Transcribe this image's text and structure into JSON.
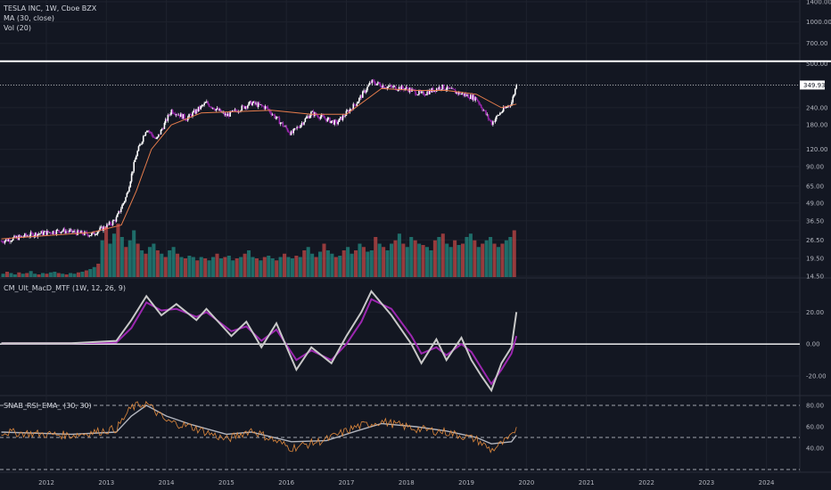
{
  "header": {
    "symbol_line": "TESLA INC, 1W, Cboe BZX",
    "ma_label": "MA (30, close)",
    "vol_label": "Vol (20)"
  },
  "panes": {
    "macd_label": "CM_Ult_MacD_MTF (1W, 12, 26, 9)",
    "rsi_label": "SNAB_RSI_EMA_ (30, 30)"
  },
  "last_price": "349.93",
  "colors": {
    "background": "#131722",
    "up": "#26a69a",
    "down": "#ef5350",
    "candle_up": "#ffffff",
    "candle_down": "#9c27b0",
    "ma": "#e57c4c",
    "rsi": "#e0893c",
    "rsi_ema": "#b2b5be",
    "grid": "#1e222d"
  },
  "chart_data": [
    {
      "type": "candlestick",
      "pane": "price",
      "scale": "log",
      "ylim": [
        14.5,
        1400
      ],
      "y_ticks": [
        "1400.00",
        "1000.00",
        "700.00",
        "500.00",
        "349.93",
        "240.00",
        "180.00",
        "120.00",
        "90.00",
        "65.00",
        "49.00",
        "36.50",
        "26.50",
        "19.50",
        "14.50"
      ],
      "horizontal_line": 520,
      "close_series": {
        "x": [
          "2011-04",
          "2011-10",
          "2012-04",
          "2012-10",
          "2013-02",
          "2013-03",
          "2013-05",
          "2013-07",
          "2013-09",
          "2013-11",
          "2014-02",
          "2014-05",
          "2014-09",
          "2015-01",
          "2015-06",
          "2015-09",
          "2016-02",
          "2016-06",
          "2016-11",
          "2017-03",
          "2017-06",
          "2017-09",
          "2018-01",
          "2018-04",
          "2018-08",
          "2018-11",
          "2019-03",
          "2019-06",
          "2019-08",
          "2019-10",
          "2019-11"
        ],
        "y": [
          26,
          29,
          31,
          29,
          35,
          38,
          55,
          110,
          170,
          140,
          230,
          200,
          260,
          210,
          260,
          240,
          155,
          220,
          185,
          260,
          370,
          340,
          330,
          300,
          340,
          310,
          280,
          185,
          225,
          260,
          349.93
        ]
      },
      "ma_series": {
        "name": "MA (30, close)",
        "x": [
          "2011-04",
          "2012-04",
          "2012-10",
          "2013-04",
          "2013-07",
          "2013-10",
          "2014-02",
          "2014-08",
          "2015-03",
          "2015-10",
          "2016-06",
          "2017-01",
          "2017-08",
          "2018-03",
          "2018-09",
          "2019-03",
          "2019-08",
          "2019-11"
        ],
        "y": [
          27,
          29,
          30,
          34,
          60,
          120,
          180,
          220,
          225,
          230,
          215,
          215,
          330,
          320,
          320,
          300,
          240,
          255
        ]
      }
    },
    {
      "type": "bar",
      "pane": "volume",
      "name": "Vol (20)",
      "x_range": [
        "2011-04",
        "2019-11"
      ],
      "bar_count": 130,
      "relative_values": [
        0.05,
        0.08,
        0.06,
        0.04,
        0.07,
        0.05,
        0.06,
        0.09,
        0.05,
        0.04,
        0.06,
        0.05,
        0.07,
        0.08,
        0.06,
        0.05,
        0.04,
        0.06,
        0.05,
        0.07,
        0.08,
        0.1,
        0.12,
        0.15,
        0.2,
        0.55,
        0.75,
        0.5,
        0.65,
        0.8,
        0.6,
        0.45,
        0.55,
        0.7,
        0.5,
        0.4,
        0.35,
        0.45,
        0.5,
        0.4,
        0.35,
        0.3,
        0.4,
        0.45,
        0.35,
        0.3,
        0.28,
        0.32,
        0.3,
        0.25,
        0.3,
        0.28,
        0.25,
        0.3,
        0.35,
        0.28,
        0.3,
        0.32,
        0.25,
        0.28,
        0.3,
        0.35,
        0.4,
        0.3,
        0.28,
        0.25,
        0.3,
        0.32,
        0.28,
        0.25,
        0.3,
        0.35,
        0.3,
        0.28,
        0.32,
        0.3,
        0.4,
        0.45,
        0.35,
        0.3,
        0.38,
        0.5,
        0.4,
        0.35,
        0.3,
        0.32,
        0.4,
        0.45,
        0.35,
        0.4,
        0.5,
        0.45,
        0.38,
        0.4,
        0.6,
        0.5,
        0.45,
        0.4,
        0.5,
        0.55,
        0.65,
        0.5,
        0.45,
        0.6,
        0.55,
        0.5,
        0.48,
        0.45,
        0.4,
        0.55,
        0.6,
        0.65,
        0.5,
        0.45,
        0.55,
        0.48,
        0.5,
        0.6,
        0.65,
        0.55,
        0.45,
        0.5,
        0.55,
        0.6,
        0.5,
        0.45,
        0.5,
        0.55,
        0.6,
        0.7
      ]
    },
    {
      "type": "line",
      "pane": "macd",
      "name": "CM_Ult_MacD_MTF (1W, 12, 26, 9)",
      "ylim": [
        -30,
        38
      ],
      "y_ticks": [
        "20.00",
        "0.00",
        "-20.00"
      ],
      "zero_line": 0,
      "x": [
        "2011-04",
        "2012-06",
        "2013-03",
        "2013-06",
        "2013-09",
        "2013-12",
        "2014-03",
        "2014-07",
        "2014-09",
        "2015-02",
        "2015-05",
        "2015-08",
        "2015-11",
        "2016-03",
        "2016-06",
        "2016-10",
        "2017-01",
        "2017-04",
        "2017-06",
        "2017-10",
        "2018-02",
        "2018-04",
        "2018-07",
        "2018-09",
        "2018-12",
        "2019-02",
        "2019-04",
        "2019-06",
        "2019-08",
        "2019-10",
        "2019-11"
      ],
      "macd": [
        0.5,
        0.5,
        2,
        15,
        30,
        18,
        25,
        15,
        22,
        5,
        14,
        -2,
        13,
        -16,
        -2,
        -12,
        5,
        20,
        33,
        18,
        0,
        -12,
        3,
        -10,
        4,
        -10,
        -20,
        -29,
        -12,
        -2,
        20
      ],
      "signal": [
        0.5,
        0.5,
        1,
        10,
        26,
        21,
        22,
        17,
        20,
        8,
        11,
        2,
        9,
        -10,
        -4,
        -10,
        0,
        14,
        28,
        22,
        5,
        -6,
        -2,
        -7,
        0,
        -5,
        -15,
        -25,
        -16,
        -6,
        5
      ]
    },
    {
      "type": "line",
      "pane": "rsi",
      "name": "SNAB_RSI_EMA_ (30, 30)",
      "ylim": [
        20,
        80
      ],
      "y_ticks": [
        "80.00",
        "60.00",
        "40.00"
      ],
      "dashed_levels": [
        80,
        50,
        20
      ],
      "x": [
        "2011-04",
        "2012-06",
        "2013-03",
        "2013-06",
        "2013-09",
        "2014-01",
        "2014-06",
        "2015-01",
        "2015-06",
        "2016-02",
        "2016-09",
        "2017-03",
        "2017-08",
        "2018-03",
        "2018-09",
        "2019-03",
        "2019-06",
        "2019-10",
        "2019-11"
      ],
      "rsi": [
        55,
        52,
        58,
        78,
        82,
        65,
        60,
        48,
        57,
        40,
        48,
        60,
        65,
        58,
        55,
        48,
        38,
        50,
        60
      ],
      "ema": [
        55,
        53,
        55,
        70,
        80,
        70,
        62,
        53,
        55,
        46,
        47,
        56,
        63,
        60,
        56,
        50,
        44,
        46,
        52
      ]
    }
  ],
  "x_axis": {
    "labels": [
      "2012",
      "2013",
      "2014",
      "2015",
      "2016",
      "2017",
      "2018",
      "2019",
      "2020",
      "2021",
      "2022",
      "2023",
      "2024"
    ]
  }
}
